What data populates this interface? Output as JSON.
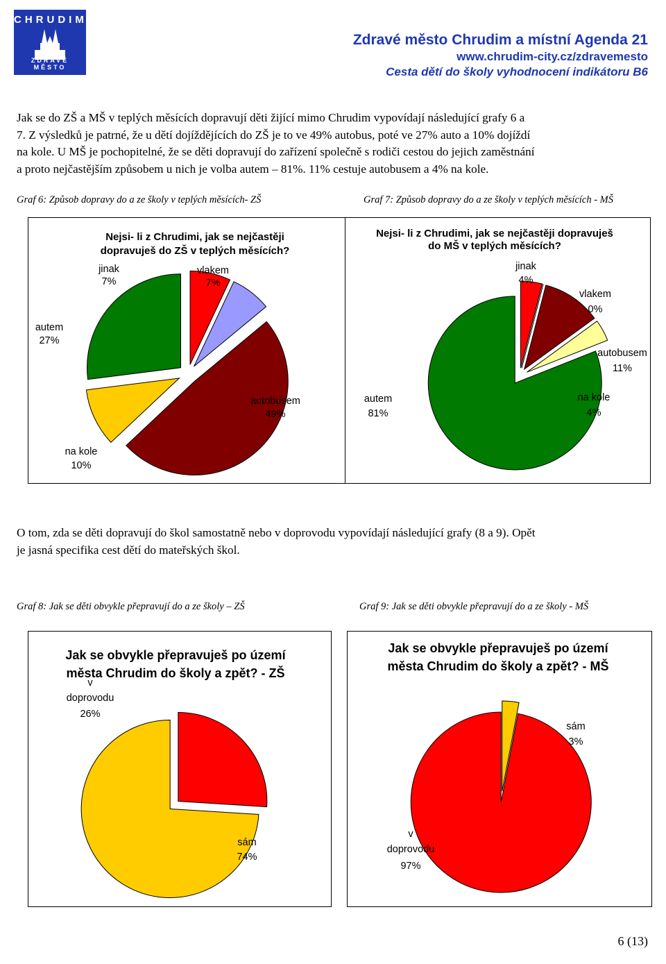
{
  "header": {
    "logo_top": "CHRUDIM",
    "logo_bottom": "ZDRAVÉ MĚSTO",
    "title": "Zdravé město Chrudim a místní Agenda 21",
    "url": "www.chrudim-city.cz/zdravemesto",
    "subtitle": "Cesta dětí do školy vyhodnocení indikátoru B6"
  },
  "paragraph1": [
    "Jak se do ZŠ a MŠ v teplých měsících dopravují děti žijící mimo Chrudim vypovídají následující grafy 6 a",
    "7. Z výsledků je patrné, že u dětí dojíždějících do ZŠ je to ve 49% autobus, poté ve 27% auto a 10% dojíždí",
    "na kole. U MŠ je pochopitelné, že se děti dopravují do zařízení společně s rodiči cestou do jejich zaměstnání",
    "a proto nejčastějším způsobem u nich je volba autem – 81%. 11% cestuje autobusem a 4% na kole."
  ],
  "paragraph2": [
    "O tom, zda se děti dopravují do škol samostatně nebo v doprovodu vypovídají následující grafy (8 a 9). Opět",
    "je jasná specifika cest dětí do mateřských škol."
  ],
  "captions": {
    "g6": "Graf 6: Způsob dopravy do a ze školy v teplých měsících- ZŠ",
    "g7": "Graf 7: Způsob dopravy do a ze školy v teplých měsících - MŠ",
    "g8": "Graf 8: Jak se děti obvykle přepravují do a ze školy – ZŠ",
    "g9": "Graf 9: Jak se děti obvykle přepravují do a ze školy - MŠ"
  },
  "colors": {
    "header_blue": "#1f38b0",
    "green": "#007a00",
    "red": "#ff0000",
    "lavender": "#9999ff",
    "maroon": "#800000",
    "yellow": "#ffcc00",
    "lightyellow": "#ffff99"
  },
  "chart_data": [
    {
      "type": "pie",
      "title_lines": [
        "Nejsi- li z Chrudimi, jak se nejčastěji",
        "dopravuješ do ZŠ v teplých měsících?"
      ],
      "slices": [
        {
          "label": "jinak",
          "value": 7,
          "pct": "7%",
          "color": "#ff0000"
        },
        {
          "label": "vlakem",
          "value": 7,
          "pct": "7%",
          "color": "#9999ff"
        },
        {
          "label": "autobusem",
          "value": 49,
          "pct": "49%",
          "color": "#800000"
        },
        {
          "label": "na kole",
          "value": 10,
          "pct": "10%",
          "color": "#ffcc00"
        },
        {
          "label": "autem",
          "value": 27,
          "pct": "27%",
          "color": "#007a00"
        }
      ]
    },
    {
      "type": "pie",
      "title_lines": [
        "Nejsi- li z Chrudimi, jak se nejčastěji dopravuješ",
        "do MŠ v teplých měsících?"
      ],
      "slices": [
        {
          "label": "jinak",
          "value": 4,
          "pct": "4%",
          "color": "#ff0000"
        },
        {
          "label": "vlakem",
          "value": 0,
          "pct": "0%",
          "color": "#9999ff"
        },
        {
          "label": "autobusem",
          "value": 11,
          "pct": "11%",
          "color": "#800000"
        },
        {
          "label": "na kole",
          "value": 4,
          "pct": "4%",
          "color": "#ffff99"
        },
        {
          "label": "autem",
          "value": 81,
          "pct": "81%",
          "color": "#007a00"
        }
      ]
    },
    {
      "type": "pie",
      "title_lines": [
        "Jak se obvykle přepravuješ po území",
        "města Chrudim do školy a zpět? - ZŠ"
      ],
      "slices": [
        {
          "label": "v doprovodu",
          "value": 26,
          "pct": "26%",
          "color": "#ff0000"
        },
        {
          "label": "sám",
          "value": 74,
          "pct": "74%",
          "color": "#ffcc00"
        }
      ]
    },
    {
      "type": "pie",
      "title_lines": [
        "Jak se obvykle přepravuješ po území",
        "města Chrudim do školy a zpět? - MŠ"
      ],
      "slices": [
        {
          "label": "sám",
          "value": 3,
          "pct": "3%",
          "color": "#ffcc00"
        },
        {
          "label": "v doprovodu",
          "value": 97,
          "pct": "97%",
          "color": "#ff0000"
        }
      ]
    }
  ],
  "page_number": "6 (13)"
}
